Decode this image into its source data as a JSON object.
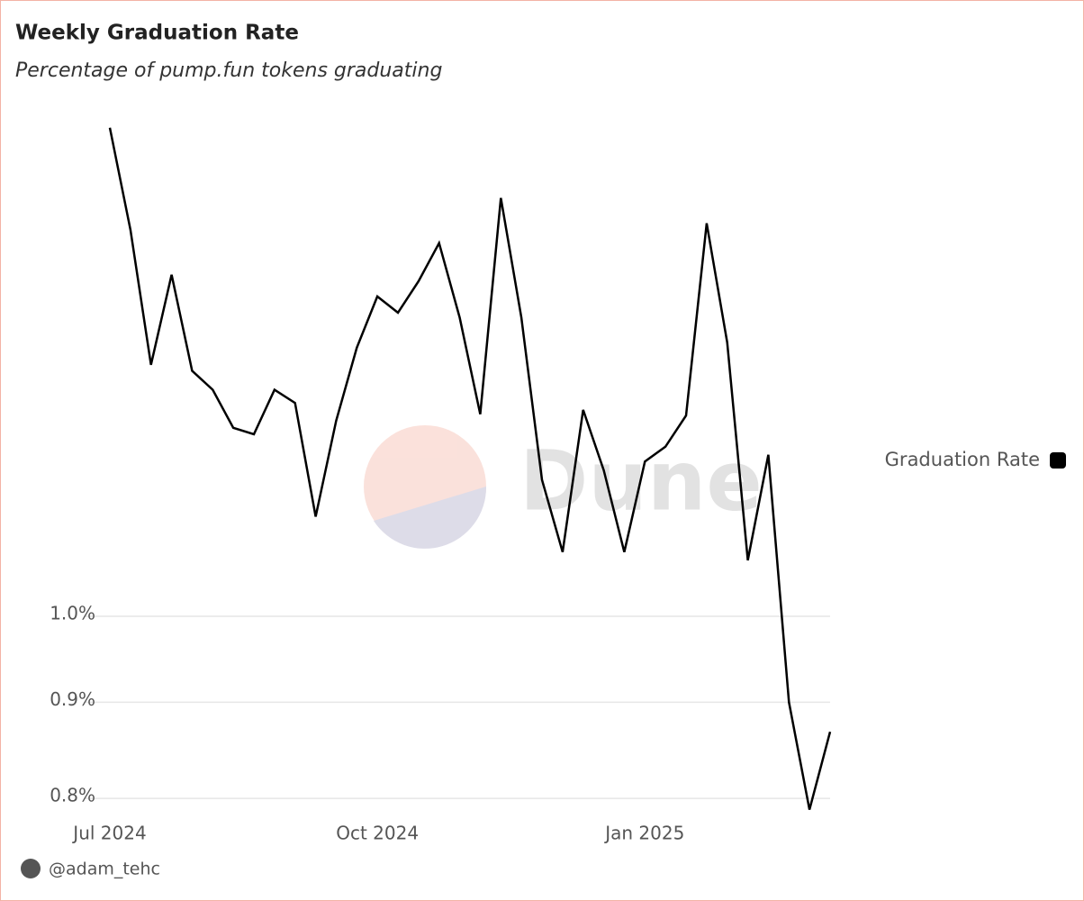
{
  "chart_data": {
    "type": "line",
    "title": "Weekly Graduation Rate",
    "subtitle": "Percentage of pump.fun tokens graduating",
    "categories": [
      "Jul 2024",
      null,
      null,
      null,
      null,
      null,
      null,
      null,
      null,
      null,
      null,
      null,
      null,
      "Oct 2024",
      null,
      null,
      null,
      null,
      null,
      null,
      null,
      null,
      null,
      null,
      null,
      null,
      "Jan 2025",
      null,
      null,
      null,
      null,
      null,
      null,
      null,
      null,
      null
    ],
    "series": [
      {
        "name": "Graduation Rate",
        "color": "#000000",
        "values": [
          1.82,
          1.606,
          1.361,
          1.52,
          1.351,
          1.32,
          1.26,
          1.25,
          1.32,
          1.299,
          1.13,
          1.271,
          1.39,
          1.48,
          1.451,
          1.508,
          1.58,
          1.442,
          1.281,
          1.67,
          1.442,
          1.182,
          1.082,
          1.288,
          1.196,
          1.082,
          1.209,
          1.231,
          1.279,
          1.619,
          1.399,
          1.071,
          1.219,
          0.9,
          0.789,
          0.868
        ]
      }
    ],
    "ylim": [
      0.78,
      1.85
    ],
    "yticks": [
      {
        "value": 0.8,
        "label": "0.8%"
      },
      {
        "value": 0.9,
        "label": "0.9%"
      },
      {
        "value": 1.0,
        "label": "1.0%"
      }
    ],
    "log_scale": true,
    "grid": true,
    "legend_position": "right"
  },
  "author": "@adam_tehc"
}
